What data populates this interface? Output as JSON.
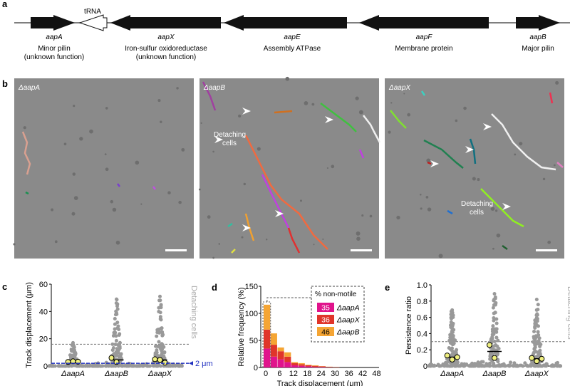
{
  "panel_a": {
    "letter": "a",
    "trna": "tRNA",
    "genes": [
      {
        "name": "aapA",
        "desc1": "Minor pilin",
        "desc2": "(unknown function)"
      },
      {
        "name": "aapX",
        "desc1": "Iron-sulfur oxidoreductase",
        "desc2": "(unknown function)"
      },
      {
        "name": "aapE",
        "desc1": "Assembly ATPase",
        "desc2": ""
      },
      {
        "name": "aapF",
        "desc1": "Membrane protein",
        "desc2": ""
      },
      {
        "name": "aapB",
        "desc1": "Major pilin",
        "desc2": ""
      }
    ]
  },
  "panel_b": {
    "letter": "b",
    "images": [
      {
        "label": "ΔaapA"
      },
      {
        "label": "ΔaapB",
        "annotation1": "Detaching",
        "annotation2": "cells"
      },
      {
        "label": "ΔaapX",
        "annotation1": "Detaching",
        "annotation2": "cells"
      }
    ]
  },
  "chart_data": [
    {
      "panel": "c",
      "type": "scatter",
      "ylabel": "Track displacement (μm)",
      "categories": [
        "ΔaapA",
        "ΔaapB",
        "ΔaapX"
      ],
      "ylim": [
        0,
        60
      ],
      "yticks": [
        0,
        20,
        40,
        60
      ],
      "threshold_detaching": 16,
      "threshold_motile": 2,
      "threshold_label": "2 μm",
      "side_label": "Detaching cells",
      "medians": [
        3.5,
        4.5,
        4.5
      ],
      "replicate_means": [
        [
          3,
          3.5,
          3.2
        ],
        [
          6,
          3
        ],
        [
          5,
          4.5,
          2.5
        ]
      ],
      "max_values": [
        17,
        49,
        51
      ]
    },
    {
      "panel": "d",
      "type": "bar",
      "stacked": true,
      "xlabel": "Track displacement (μm)",
      "ylabel": "Relative frequency (%)",
      "ylim": [
        0,
        150
      ],
      "yticks": [
        0,
        50,
        100,
        150
      ],
      "xticks": [
        0,
        6,
        12,
        18,
        24,
        30,
        36,
        42,
        48
      ],
      "bin_width": 3,
      "legend_title": "% non-motile",
      "series": [
        {
          "name": "ΔaapA",
          "non_motile": "35",
          "color": "#e0138c",
          "values": [
            35,
            20,
            15,
            10,
            4,
            3,
            2,
            1,
            1,
            0.5,
            0.3
          ]
        },
        {
          "name": "ΔaapX",
          "non_motile": "36",
          "color": "#e0352a",
          "values": [
            35,
            22,
            15,
            10,
            4,
            3,
            2,
            2,
            1,
            0.5,
            0.3
          ]
        },
        {
          "name": "ΔaapB",
          "non_motile": "46",
          "color": "#f5a534",
          "values": [
            46,
            21,
            7,
            8,
            2,
            2,
            1,
            1,
            0.5,
            0.5,
            0.3
          ]
        }
      ]
    },
    {
      "panel": "e",
      "type": "scatter",
      "ylabel": "Persistence ratio",
      "categories": [
        "ΔaapA",
        "ΔaapB",
        "ΔaapX"
      ],
      "ylim": [
        0,
        1.0
      ],
      "yticks": [
        "0",
        "0.2",
        "0.4",
        "0.6",
        "0.8",
        "1.0"
      ],
      "threshold_detaching": 0.3,
      "side_label": "Detaching cells",
      "medians": [
        0.11,
        0.18,
        0.09
      ],
      "replicate_means": [
        [
          0.13,
          0.08,
          0.11
        ],
        [
          0.26,
          0.1
        ],
        [
          0.1,
          0.06,
          0.09
        ]
      ],
      "max_values": [
        0.69,
        0.89,
        0.82
      ]
    }
  ]
}
